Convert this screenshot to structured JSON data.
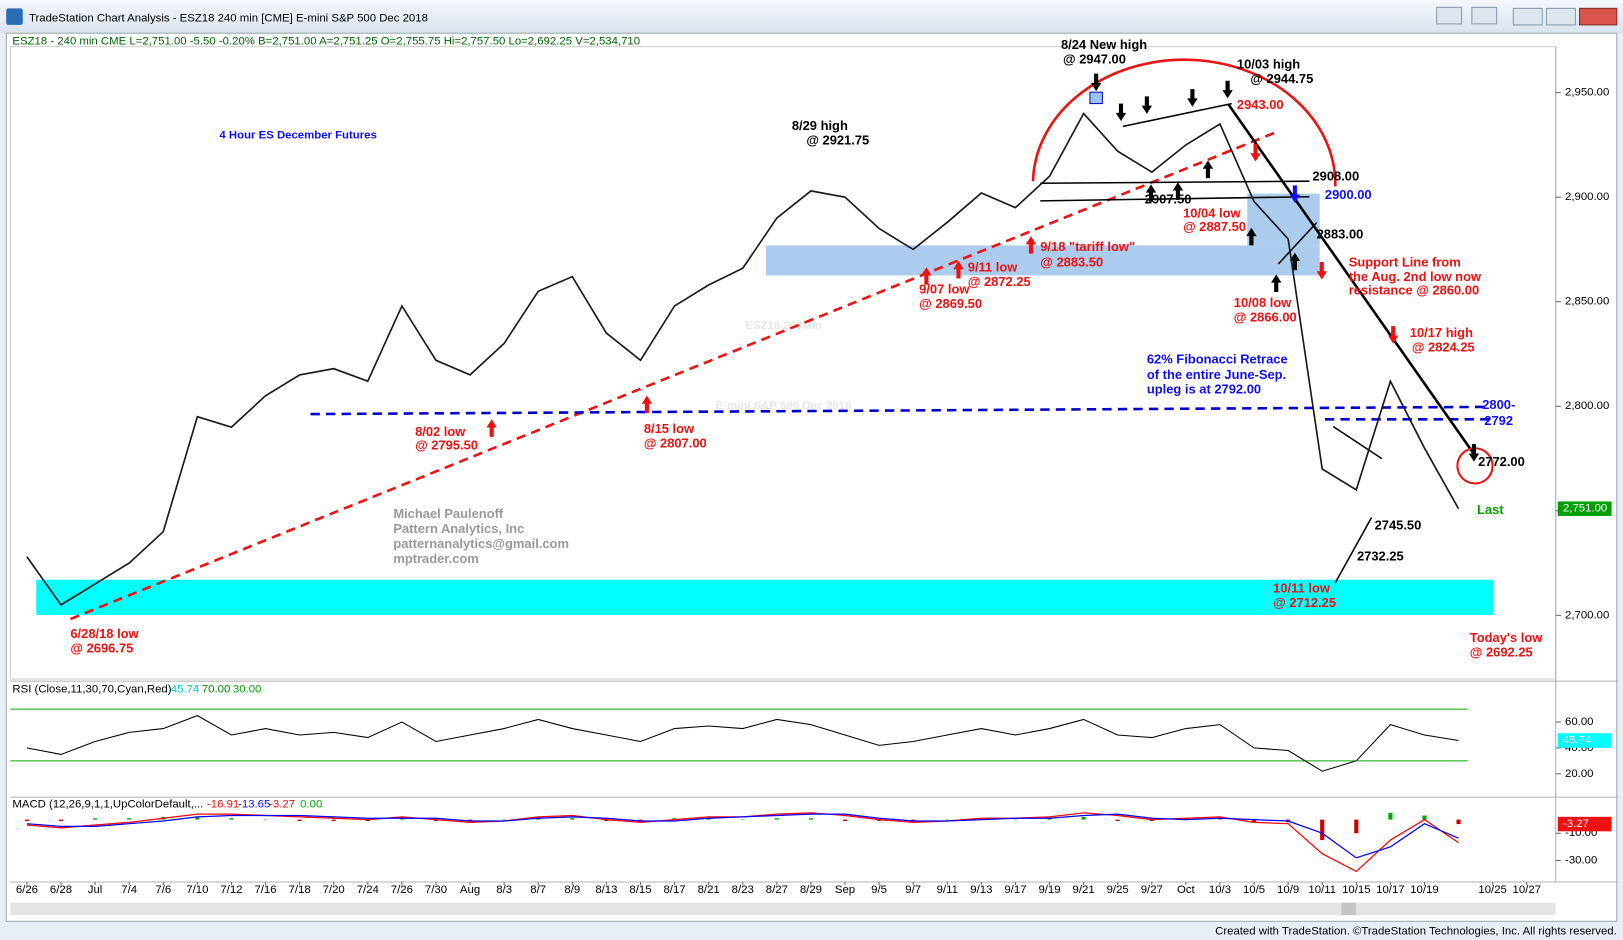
{
  "window": {
    "title": "TradeStation Chart Analysis - ESZ18 240 min [CME] E-mini S&P 500 Dec 2018",
    "footer": "Created with TradeStation. ©TradeStation Technologies, Inc. All rights reserved."
  },
  "chart_data": [
    {
      "type": "line",
      "title": "4 Hour ES December Futures",
      "info": "ESZ18 - 240 min  CME  L=2,751.00  -5.50  -0.20%  B=2,751.00  A=2,751.25  O=2,755.75  Hi=2,757.50  Lo=2,692.25  V=2,534,710",
      "watermark": [
        "ESZ18,240Min",
        "E-mini S&P 500 Dec 2018"
      ],
      "categories": [
        "6/26",
        "6/28",
        "Jul",
        "7/4",
        "7/6",
        "7/10",
        "7/12",
        "7/16",
        "7/18",
        "7/20",
        "7/24",
        "7/26",
        "7/30",
        "Aug",
        "8/3",
        "8/7",
        "8/9",
        "8/13",
        "8/15",
        "8/17",
        "8/21",
        "8/23",
        "8/27",
        "8/29",
        "Sep",
        "9/5",
        "9/7",
        "9/11",
        "9/13",
        "9/17",
        "9/19",
        "9/21",
        "9/25",
        "9/27",
        "Oct",
        "10/3",
        "10/5",
        "10/9",
        "10/11",
        "10/15",
        "10/17",
        "10/19",
        null,
        "10/25",
        "10/27"
      ],
      "values": [
        2728,
        2705,
        2715,
        2725,
        2740,
        2795,
        2790,
        2805,
        2815,
        2818,
        2812,
        2848,
        2822,
        2815,
        2830,
        2855,
        2862,
        2835,
        2822,
        2848,
        2858,
        2866,
        2890,
        2903,
        2900,
        2885,
        2875,
        2888,
        2902,
        2895,
        2910,
        2940,
        2922,
        2912,
        2925,
        2935,
        2898,
        2880,
        2770,
        2760,
        2812,
        2780,
        2751,
        null,
        null
      ],
      "color": "#1a1a1a",
      "ylim": [
        2670,
        2972
      ],
      "yticks": [
        {
          "value": 2700,
          "label": "2,700.00"
        },
        {
          "value": 2750,
          "label": "2,750.00"
        },
        {
          "value": 2800,
          "label": "2,800.00"
        },
        {
          "value": 2850,
          "label": "2,850.00"
        },
        {
          "value": 2900,
          "label": "2,900.00"
        },
        {
          "value": 2950,
          "label": "2,950.00"
        }
      ],
      "last": {
        "value": 2751,
        "label": "2,751.00"
      },
      "annotations": [
        "8/24 New high",
        "@ 2947.00",
        "10/03 high",
        "@ 2944.75",
        "8/29 high",
        "@ 2921.75",
        "2943.00",
        "2908.00",
        "2900.00",
        "2907.50",
        "10/04 low",
        "@ 2887.50",
        "2883.00",
        "9/18 \"tariff low\"",
        "@ 2883.50",
        "9/11 low",
        "@ 2872.25",
        "9/07 low",
        "@ 2869.50",
        "Support Line from",
        "the Aug. 2nd low now",
        "resistance @ 2860.00",
        "10/08 low",
        "@ 2866.00",
        "10/17 high",
        "@ 2824.25",
        "62% Fibonacci Retrace",
        "of the entire June-Sep.",
        "upleg is at 2792.00",
        "2800-",
        "2792",
        "8/02 low",
        "@ 2795.50",
        "8/15 low",
        "@ 2807.00",
        "2772.00",
        "Last",
        "2745.50",
        "2732.25",
        "10/11 low",
        "@ 2712.25",
        "6/28/18 low",
        "@ 2696.75",
        "Today's low",
        "@ 2692.25"
      ],
      "credit": [
        "Michael Paulenoff",
        "Pattern Analytics, Inc",
        "patternanalytics@gmail.com",
        "mptrader.com"
      ]
    },
    {
      "type": "line",
      "title": "RSI (Close,11,30,70,Cyan,Red)",
      "legend_values": [
        "45.74",
        "70.00",
        "30.00"
      ],
      "values": [
        40,
        35,
        45,
        52,
        55,
        65,
        50,
        55,
        50,
        52,
        48,
        60,
        45,
        50,
        55,
        62,
        55,
        50,
        45,
        55,
        57,
        55,
        62,
        58,
        50,
        42,
        45,
        50,
        55,
        50,
        55,
        62,
        50,
        48,
        55,
        58,
        40,
        38,
        22,
        30,
        58,
        50,
        45.74,
        null,
        null
      ],
      "color": "#000000",
      "levels": [
        70,
        30
      ],
      "ylim": [
        2,
        90
      ],
      "yticks": [
        {
          "value": 20,
          "label": "20.00"
        },
        {
          "value": 40,
          "label": "40.00"
        },
        {
          "value": 60,
          "label": "60.00"
        }
      ],
      "last": {
        "value": 45.74,
        "label": "45.74"
      }
    },
    {
      "type": "line",
      "title": "MACD (12,26,9,1,1,UpColorDefault,...",
      "legend_values": [
        "-16.91",
        "-13.65",
        "-3.27",
        "0.00"
      ],
      "series": [
        {
          "color": "#ff0000",
          "values": [
            -4,
            -6,
            -4,
            -2,
            1,
            4,
            4,
            3,
            2,
            1,
            0,
            2,
            0,
            -2,
            -1,
            2,
            3,
            0,
            -2,
            0,
            2,
            2,
            4,
            5,
            3,
            0,
            -2,
            -1,
            1,
            1,
            2,
            5,
            3,
            0,
            1,
            2,
            -2,
            -3,
            -25,
            -38,
            -15,
            0,
            -16.91,
            null,
            null
          ]
        },
        {
          "color": "#0000ff",
          "values": [
            -3,
            -5,
            -5,
            -3,
            -1,
            2,
            3,
            3,
            3,
            2,
            1,
            1,
            1,
            -1,
            -1,
            1,
            2,
            1,
            -1,
            -1,
            1,
            2,
            3,
            4,
            4,
            1,
            -1,
            -1,
            0,
            1,
            1,
            3,
            4,
            1,
            0,
            1,
            0,
            -1,
            -10,
            -28,
            -20,
            -3,
            -13.65,
            null,
            null
          ]
        }
      ],
      "bars": {
        "colors": [
          "#00aa00",
          "#cc0000"
        ],
        "values": [
          -1,
          -1,
          1,
          1,
          2,
          2,
          1,
          0,
          -1,
          -1,
          -1,
          1,
          -1,
          -1,
          0,
          1,
          1,
          -1,
          -1,
          1,
          1,
          0,
          1,
          1,
          -1,
          -1,
          -1,
          0,
          1,
          0,
          1,
          2,
          -1,
          -1,
          1,
          1,
          -2,
          -2,
          -15,
          -10,
          5,
          3,
          -3.27,
          null,
          null
        ]
      },
      "ylim": [
        -48,
        15
      ],
      "yticks": [
        {
          "value": -30,
          "label": "-30.00"
        },
        {
          "value": -10,
          "label": "-10.00"
        }
      ],
      "last": {
        "value": -3.27,
        "label": "-3.27"
      }
    }
  ]
}
